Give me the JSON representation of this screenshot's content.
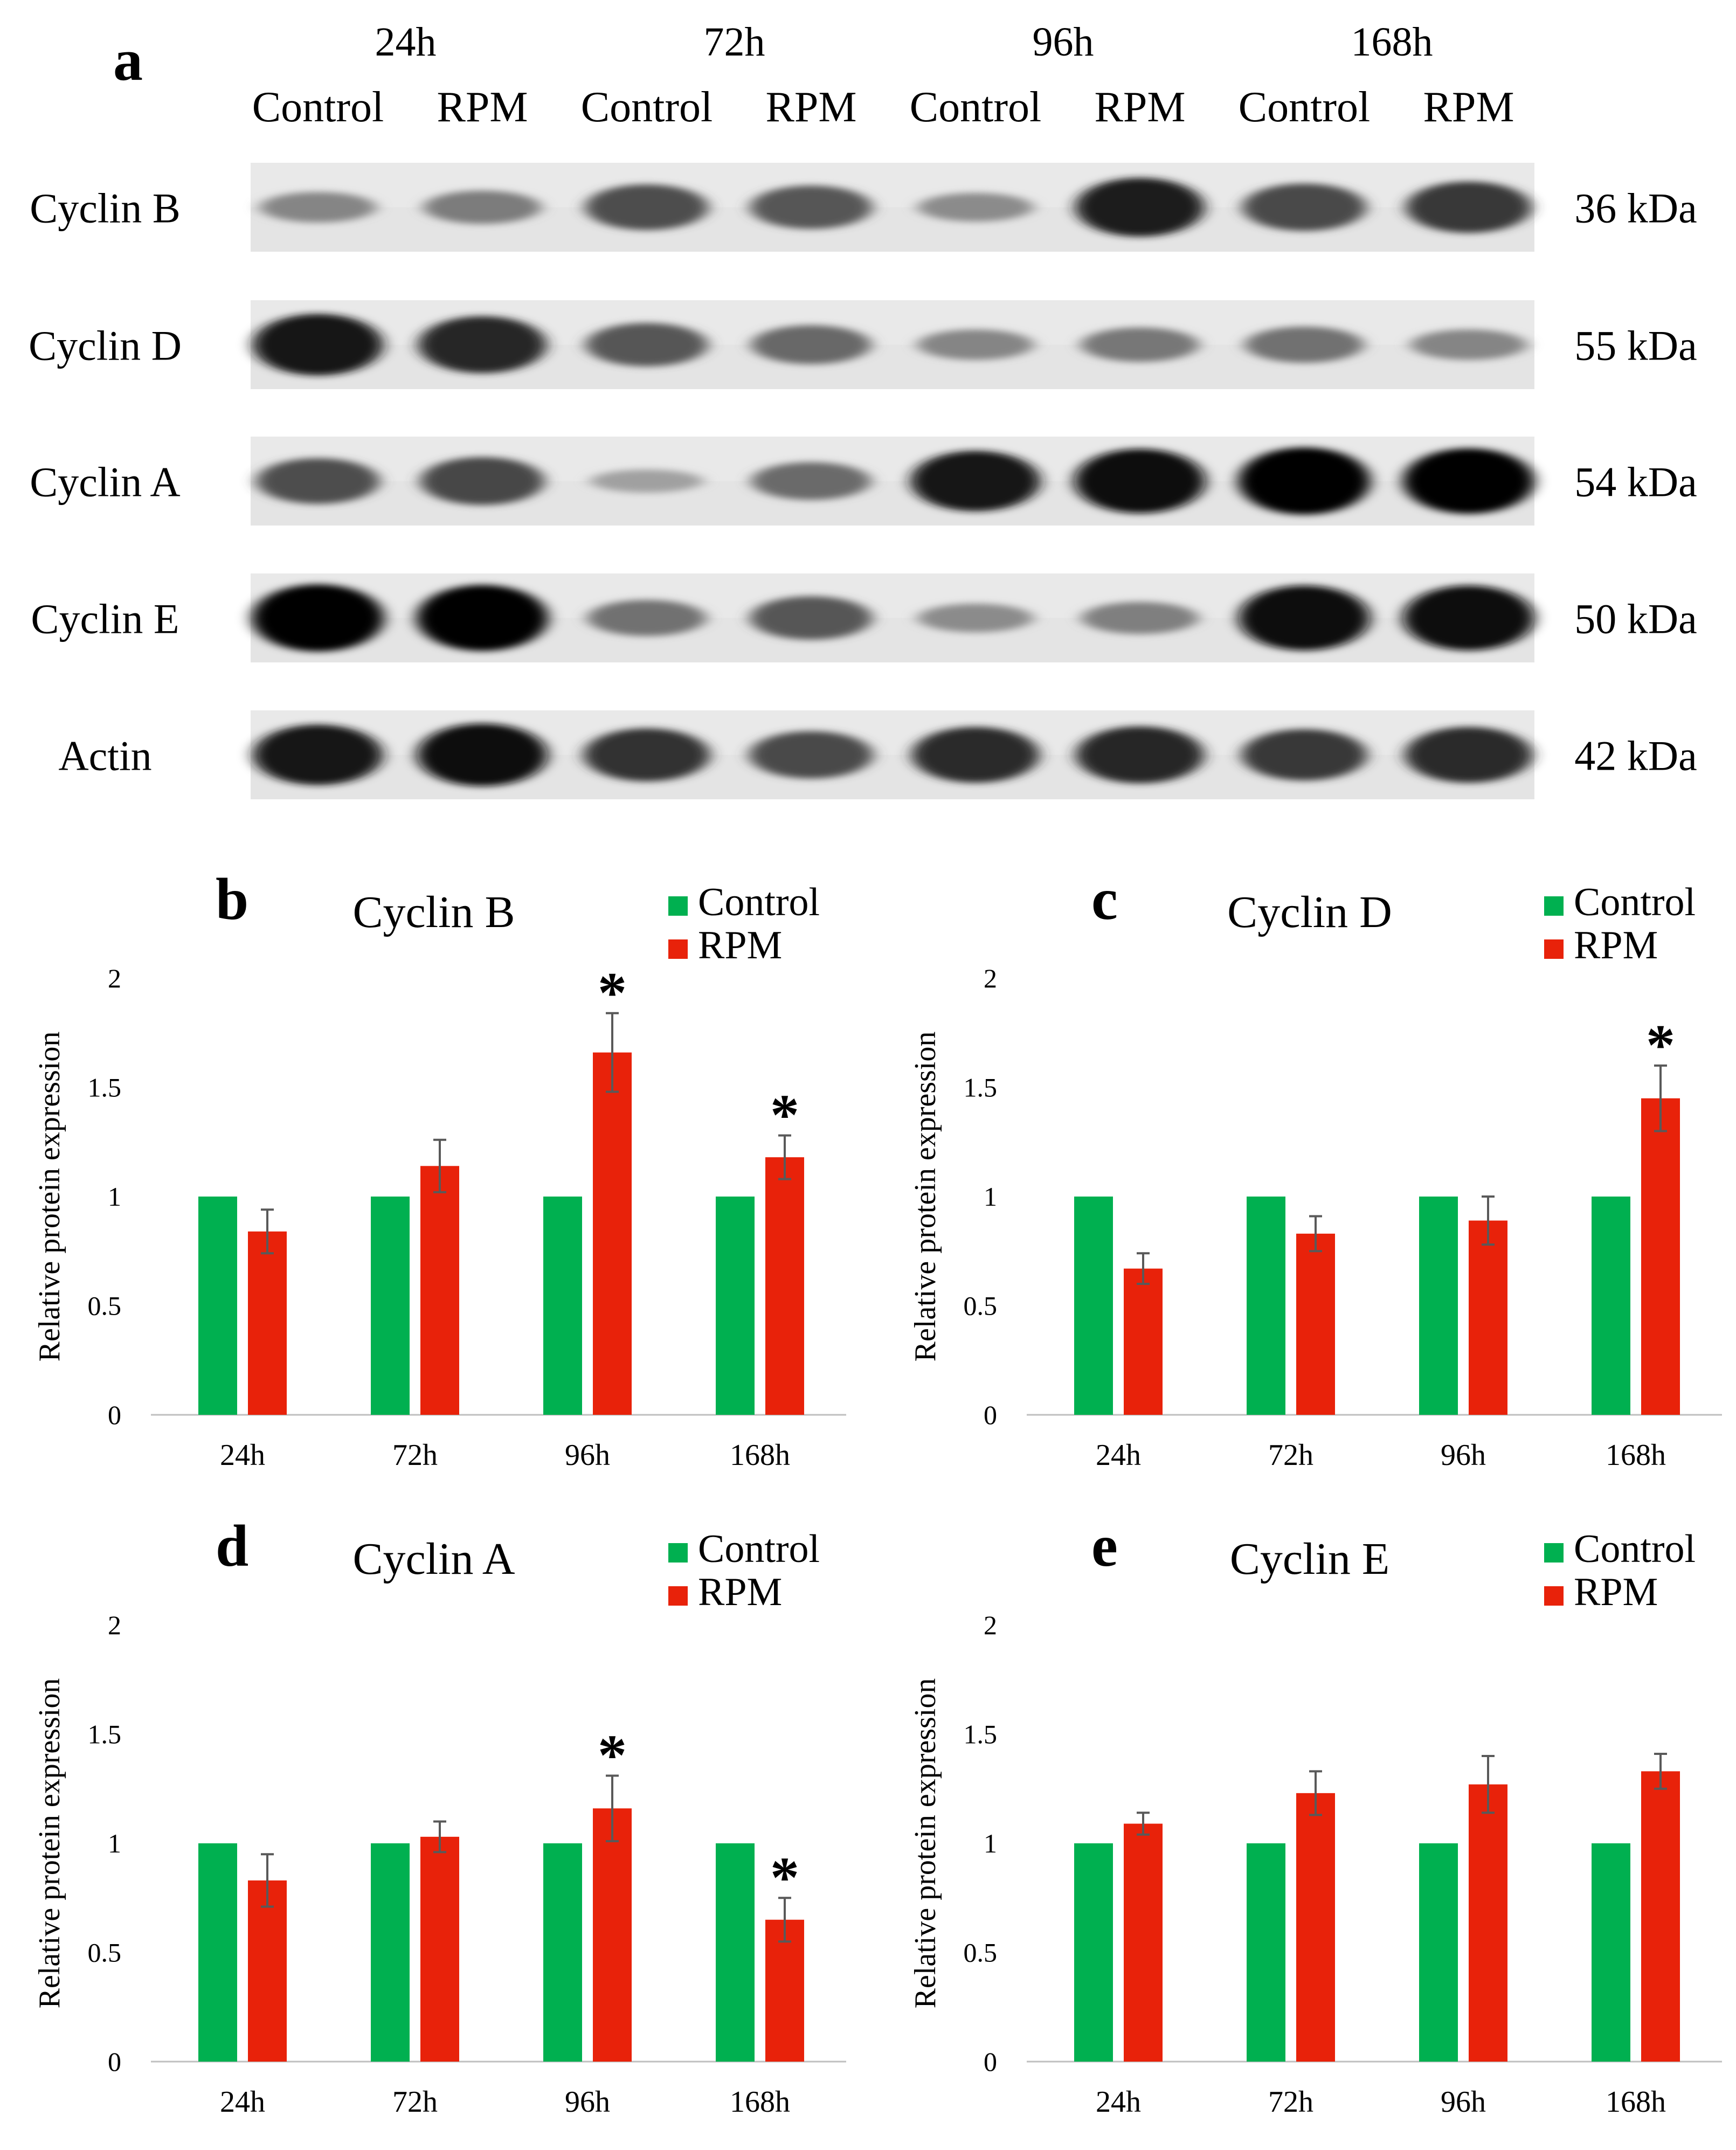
{
  "colors": {
    "control": "#00b050",
    "rpm": "#e8220a",
    "error": "#595959",
    "axis": "#bfbfbf"
  },
  "panel_a": {
    "letter": "a",
    "timepoints": [
      "24h",
      "72h",
      "96h",
      "168h"
    ],
    "conditions": [
      "Control",
      "RPM"
    ],
    "rows": [
      {
        "protein": "Cyclin B",
        "size": "36 kDa",
        "band_intensity": [
          0.35,
          0.4,
          0.62,
          0.58,
          0.32,
          0.85,
          0.65,
          0.72
        ]
      },
      {
        "protein": "Cyclin D",
        "size": "55 kDa",
        "band_intensity": [
          0.9,
          0.82,
          0.58,
          0.5,
          0.35,
          0.42,
          0.45,
          0.35
        ]
      },
      {
        "protein": "Cyclin A",
        "size": "54 kDa",
        "band_intensity": [
          0.62,
          0.66,
          0.22,
          0.48,
          0.88,
          0.95,
          1.0,
          0.97
        ]
      },
      {
        "protein": "Cyclin E",
        "size": "50 kDa",
        "band_intensity": [
          1.0,
          0.98,
          0.45,
          0.58,
          0.32,
          0.38,
          0.96,
          0.96
        ]
      },
      {
        "protein": "Actin",
        "size": "42 kDa",
        "band_intensity": [
          0.88,
          0.92,
          0.75,
          0.65,
          0.8,
          0.82,
          0.72,
          0.8
        ]
      }
    ]
  },
  "chart_data": [
    {
      "panel": "b",
      "type": "bar",
      "title": "Cyclin B",
      "categories": [
        "24h",
        "72h",
        "96h",
        "168h"
      ],
      "series": [
        {
          "name": "Control",
          "values": [
            1,
            1,
            1,
            1
          ],
          "errors": [
            0,
            0,
            0,
            0
          ]
        },
        {
          "name": "RPM",
          "values": [
            0.84,
            1.14,
            1.66,
            1.18
          ],
          "errors": [
            0.1,
            0.12,
            0.18,
            0.1
          ]
        }
      ],
      "significant": [
        "",
        "",
        "*",
        "*"
      ],
      "ylabel": "Relative protein expression",
      "ylim": [
        0,
        2
      ],
      "yticks": [
        "0",
        "0.5",
        "1",
        "1.5",
        "2"
      ],
      "yticks_values": [
        0,
        0.5,
        1,
        1.5,
        2
      ]
    },
    {
      "panel": "c",
      "type": "bar",
      "title": "Cyclin D",
      "categories": [
        "24h",
        "72h",
        "96h",
        "168h"
      ],
      "series": [
        {
          "name": "Control",
          "values": [
            1,
            1,
            1,
            1
          ],
          "errors": [
            0,
            0,
            0,
            0
          ]
        },
        {
          "name": "RPM",
          "values": [
            0.67,
            0.83,
            0.89,
            1.45
          ],
          "errors": [
            0.07,
            0.08,
            0.11,
            0.15
          ]
        }
      ],
      "significant": [
        "",
        "",
        "",
        "*"
      ],
      "ylabel": "Relative protein expression",
      "ylim": [
        0,
        2
      ],
      "yticks": [
        "0",
        "0.5",
        "1",
        "1.5",
        "2"
      ],
      "yticks_values": [
        0,
        0.5,
        1,
        1.5,
        2
      ]
    },
    {
      "panel": "d",
      "type": "bar",
      "title": "Cyclin A",
      "categories": [
        "24h",
        "72h",
        "96h",
        "168h"
      ],
      "series": [
        {
          "name": "Control",
          "values": [
            1,
            1,
            1,
            1
          ],
          "errors": [
            0,
            0,
            0,
            0
          ]
        },
        {
          "name": "RPM",
          "values": [
            0.83,
            1.03,
            1.16,
            0.65
          ],
          "errors": [
            0.12,
            0.07,
            0.15,
            0.1
          ]
        }
      ],
      "significant": [
        "",
        "",
        "*",
        "*"
      ],
      "ylabel": "Relative protein expression",
      "ylim": [
        0,
        2
      ],
      "yticks": [
        "0",
        "0.5",
        "1",
        "1.5",
        "2"
      ],
      "yticks_values": [
        0,
        0.5,
        1,
        1.5,
        2
      ]
    },
    {
      "panel": "e",
      "type": "bar",
      "title": "Cyclin E",
      "categories": [
        "24h",
        "72h",
        "96h",
        "168h"
      ],
      "series": [
        {
          "name": "Control",
          "values": [
            1,
            1,
            1,
            1
          ],
          "errors": [
            0,
            0,
            0,
            0
          ]
        },
        {
          "name": "RPM",
          "values": [
            1.09,
            1.23,
            1.27,
            1.33
          ],
          "errors": [
            0.05,
            0.1,
            0.13,
            0.08
          ]
        }
      ],
      "significant": [
        "",
        "",
        "",
        ""
      ],
      "ylabel": "Relative protein expression",
      "ylim": [
        0,
        2
      ],
      "yticks": [
        "0",
        "0.5",
        "1",
        "1.5",
        "2"
      ],
      "yticks_values": [
        0,
        0.5,
        1,
        1.5,
        2
      ]
    }
  ]
}
